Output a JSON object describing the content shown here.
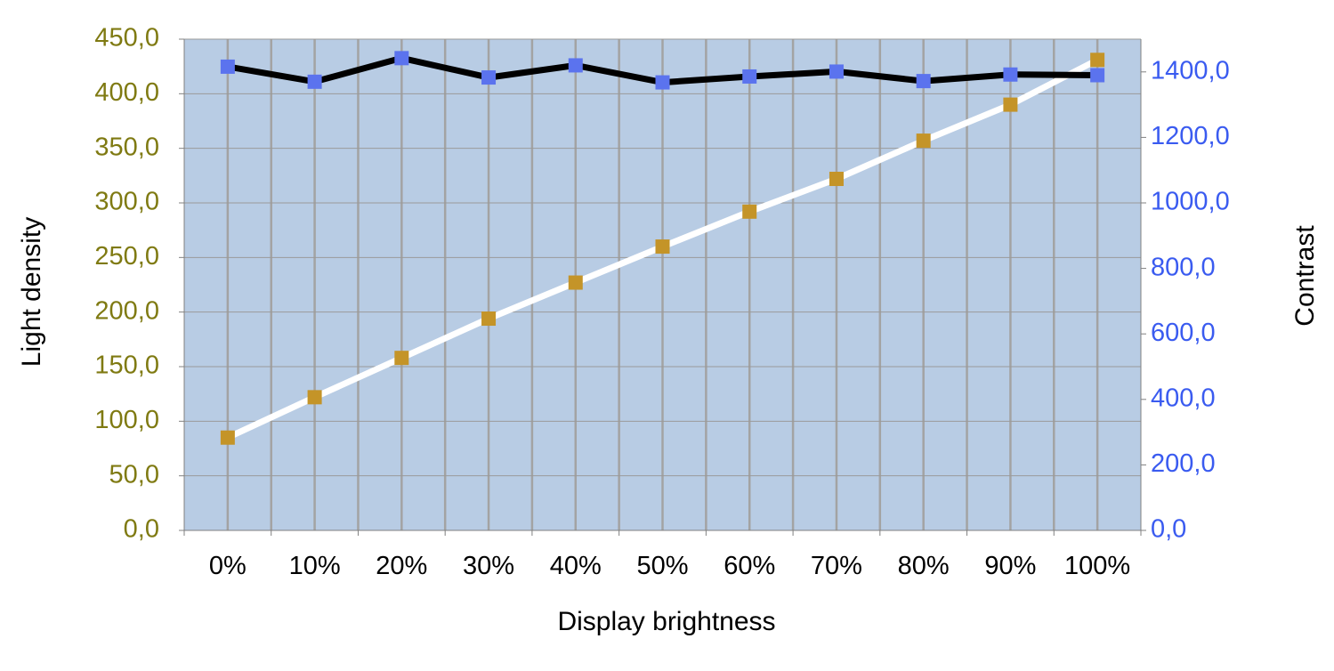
{
  "chart_data": {
    "type": "line",
    "xlabel": "Display brightness",
    "ylabel_left": "Light density",
    "ylabel_right": "Contrast",
    "categories": [
      "0%",
      "10%",
      "20%",
      "30%",
      "40%",
      "50%",
      "60%",
      "70%",
      "80%",
      "90%",
      "100%"
    ],
    "y_left": {
      "min": 0,
      "max": 450,
      "step": 50,
      "tick_labels": [
        "0,0",
        "50,0",
        "100,0",
        "150,0",
        "200,0",
        "250,0",
        "300,0",
        "350,0",
        "400,0",
        "450,0"
      ],
      "color": "#7f7a12"
    },
    "y_right": {
      "min": 0,
      "max": 1500,
      "step": 200,
      "tick_labels": [
        "0,0",
        "200,0",
        "400,0",
        "600,0",
        "800,0",
        "1000,0",
        "1200,0",
        "1400,0"
      ],
      "color": "#3a5bf0"
    },
    "series": [
      {
        "axis": "left",
        "line_color": "#ffffff",
        "marker_color": "#c49428",
        "values": [
          85,
          122,
          158,
          194,
          227,
          260,
          292,
          322,
          357,
          390,
          431
        ]
      },
      {
        "axis": "right",
        "line_color": "#000000",
        "marker_color": "#5b73ee",
        "values": [
          1416,
          1370,
          1442,
          1383,
          1420,
          1368,
          1386,
          1401,
          1372,
          1392,
          1390
        ]
      }
    ],
    "plot_background": "#b8cce4",
    "grid": true,
    "legend": "none"
  }
}
